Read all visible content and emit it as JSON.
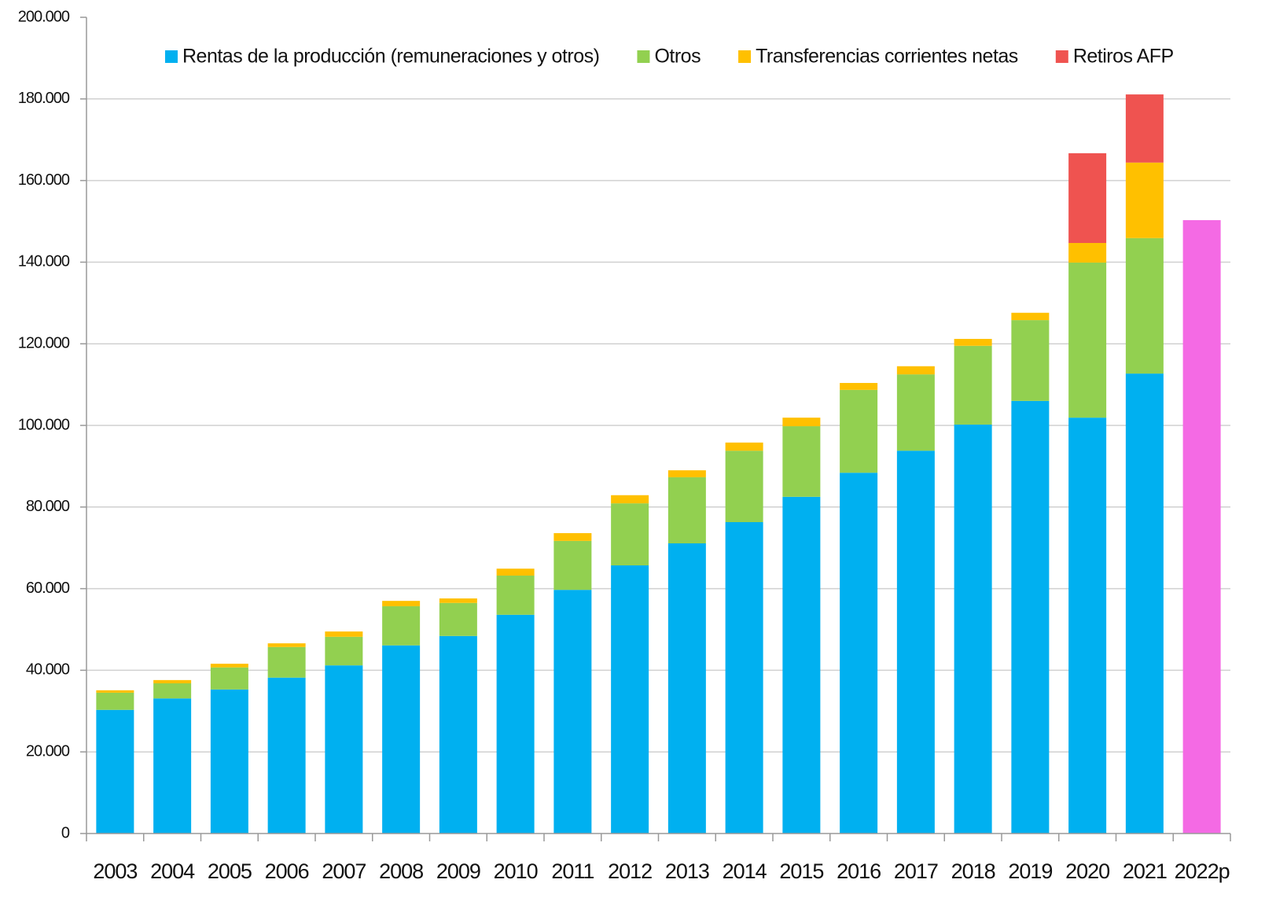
{
  "chart_data": {
    "type": "stacked_bar",
    "categories": [
      "2003",
      "2004",
      "2005",
      "2006",
      "2007",
      "2008",
      "2009",
      "2010",
      "2011",
      "2012",
      "2013",
      "2014",
      "2015",
      "2016",
      "2017",
      "2018",
      "2019",
      "2020",
      "2021",
      "2022p"
    ],
    "series": [
      {
        "name": "Rentas de la producción (remuneraciones y otros)",
        "color": "#00b0f0",
        "values": [
          30300,
          33100,
          35300,
          38200,
          41200,
          46100,
          48400,
          53600,
          59700,
          65700,
          71100,
          76300,
          82500,
          88400,
          93800,
          100200,
          106000,
          101900,
          112700,
          null
        ]
      },
      {
        "name": "Otros",
        "color": "#92d050",
        "values": [
          4200,
          3700,
          5400,
          7500,
          7000,
          9600,
          8100,
          9600,
          12000,
          15200,
          16200,
          17500,
          17300,
          20300,
          18700,
          19300,
          19800,
          38000,
          33200,
          null
        ]
      },
      {
        "name": "Transferencias corrientes netas",
        "color": "#ffc000",
        "values": [
          600,
          800,
          900,
          900,
          1300,
          1300,
          1100,
          1700,
          1900,
          2000,
          1700,
          2000,
          2100,
          1700,
          2000,
          1700,
          1800,
          4800,
          18500,
          null
        ]
      },
      {
        "name": "Retiros AFP",
        "color": "#ef5350",
        "values": [
          null,
          null,
          null,
          null,
          null,
          null,
          null,
          null,
          null,
          null,
          null,
          null,
          null,
          null,
          null,
          null,
          null,
          22000,
          16700,
          null
        ]
      },
      {
        "color": "#f46ae4",
        "values": [
          null,
          null,
          null,
          null,
          null,
          null,
          null,
          null,
          null,
          null,
          null,
          null,
          null,
          null,
          null,
          null,
          null,
          null,
          null,
          150300
        ]
      }
    ],
    "ylim": [
      0,
      200000
    ],
    "yticks": [
      0,
      {
        "value": 20000,
        "label": "20.000"
      },
      {
        "value": 40000,
        "label": "40.000"
      },
      {
        "value": 60000,
        "label": "60.000"
      },
      {
        "value": 80000,
        "label": "80.000"
      },
      {
        "value": 100000,
        "label": "100.000"
      },
      {
        "value": 120000,
        "label": "120.000"
      },
      {
        "value": 140000,
        "label": "140.000"
      },
      {
        "value": 160000,
        "label": "160.000"
      },
      {
        "value": 180000,
        "label": "180.000"
      },
      {
        "value": 200000,
        "label": "200.000"
      }
    ],
    "grid": true,
    "legend": "top"
  }
}
